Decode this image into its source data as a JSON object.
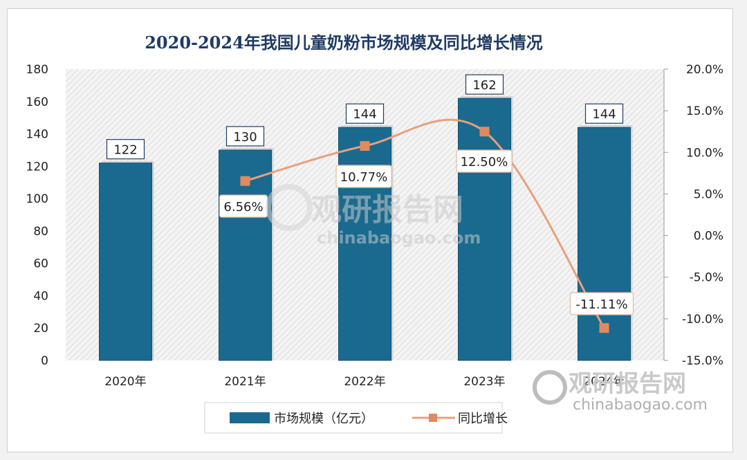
{
  "colors": {
    "bar": "#1a6a8f",
    "bar_edge": "#0f4f6e",
    "line": "#e8a07a",
    "marker": "#e08a60",
    "title": "#1f3b63"
  },
  "watermark": {
    "brand": "观研报告网",
    "domain": "chinabaogao.com"
  },
  "chart_data": {
    "type": "bar",
    "title": "2020-2024年我国儿童奶粉市场规模及同比增长情况",
    "categories": [
      "2020年",
      "2021年",
      "2022年",
      "2023年",
      "2024年"
    ],
    "series": [
      {
        "name": "市场规模（亿元）",
        "type": "bar",
        "axis": "left",
        "values": [
          122,
          130,
          144,
          162,
          144
        ],
        "labels": [
          "122",
          "130",
          "144",
          "162",
          "144"
        ]
      },
      {
        "name": "同比增长",
        "type": "line",
        "axis": "right",
        "values": [
          null,
          6.56,
          10.77,
          12.5,
          -11.11
        ],
        "labels": [
          "",
          "6.56%",
          "10.77%",
          "12.50%",
          "-11.11%"
        ]
      }
    ],
    "y_left": {
      "lim": [
        0,
        180
      ],
      "ticks": [
        "0",
        "20",
        "40",
        "60",
        "80",
        "100",
        "120",
        "140",
        "160",
        "180"
      ]
    },
    "y_right": {
      "lim": [
        -15,
        20
      ],
      "ticks": [
        "-15.0%",
        "-10.0%",
        "-5.0%",
        "0.0%",
        "5.0%",
        "10.0%",
        "15.0%",
        "20.0%"
      ]
    },
    "legend": "bottom",
    "grid": false
  }
}
